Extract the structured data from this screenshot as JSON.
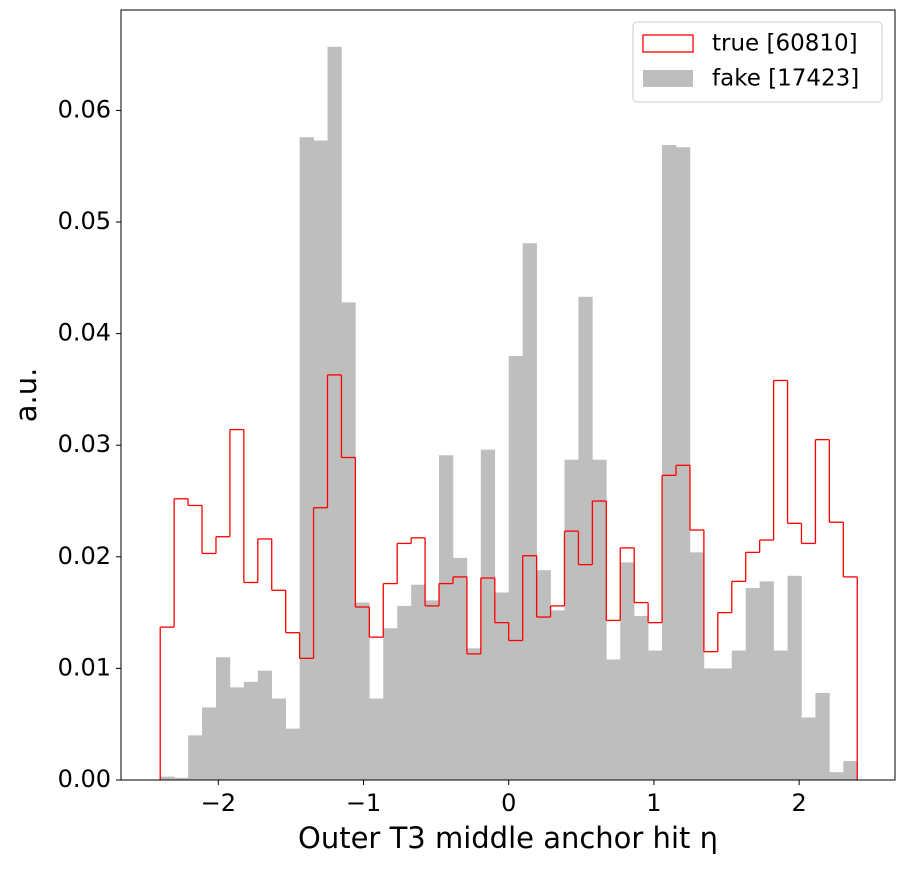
{
  "chart_data": {
    "type": "histogram",
    "xlabel": "Outer T3 middle anchor hit η",
    "ylabel": "a.u.",
    "bins": [
      -2.4,
      -2.304,
      -2.208,
      -2.112,
      -2.016,
      -1.92,
      -1.824,
      -1.728,
      -1.632,
      -1.536,
      -1.44,
      -1.344,
      -1.248,
      -1.152,
      -1.056,
      -0.96,
      -0.864,
      -0.768,
      -0.672,
      -0.576,
      -0.48,
      -0.384,
      -0.288,
      -0.192,
      -0.096,
      0,
      0.096,
      0.192,
      0.288,
      0.384,
      0.48,
      0.576,
      0.672,
      0.768,
      0.864,
      0.96,
      1.056,
      1.152,
      1.248,
      1.344,
      1.44,
      1.536,
      1.632,
      1.728,
      1.824,
      1.92,
      2.016,
      2.112,
      2.208,
      2.304,
      2.4
    ],
    "series": [
      {
        "name": "true [60810]",
        "color": "#ff0000",
        "histtype": "step",
        "values": [
          0.0137,
          0.0252,
          0.0246,
          0.0203,
          0.0218,
          0.0314,
          0.0177,
          0.0216,
          0.017,
          0.0132,
          0.0109,
          0.0244,
          0.0363,
          0.0289,
          0.0155,
          0.0128,
          0.0176,
          0.0212,
          0.0217,
          0.0156,
          0.0176,
          0.0182,
          0.0113,
          0.0181,
          0.0141,
          0.0125,
          0.0201,
          0.0146,
          0.0156,
          0.0223,
          0.0193,
          0.025,
          0.0143,
          0.0208,
          0.0159,
          0.0141,
          0.0273,
          0.0282,
          0.0224,
          0.0115,
          0.015,
          0.0178,
          0.0204,
          0.0215,
          0.0358,
          0.023,
          0.0212,
          0.0305,
          0.0231,
          0.0182
        ]
      },
      {
        "name": "fake [17423]",
        "color": "#bebebe",
        "histtype": "bar",
        "values": [
          0.0003,
          0.0002,
          0.004,
          0.0065,
          0.011,
          0.0083,
          0.0088,
          0.0098,
          0.0073,
          0.0046,
          0.0576,
          0.0573,
          0.0657,
          0.0428,
          0.0159,
          0.0073,
          0.0136,
          0.0156,
          0.0175,
          0.0161,
          0.0291,
          0.0199,
          0.0118,
          0.0296,
          0.0168,
          0.038,
          0.0481,
          0.0188,
          0.0152,
          0.0287,
          0.0433,
          0.0287,
          0.0108,
          0.0195,
          0.0147,
          0.0116,
          0.0569,
          0.0567,
          0.0204,
          0.01,
          0.01,
          0.0116,
          0.0172,
          0.0178,
          0.0116,
          0.0183,
          0.0056,
          0.0078,
          0.0007,
          0.0017
        ]
      }
    ],
    "xlim": [
      -2.67,
      2.66
    ],
    "ylim": [
      0,
      0.069
    ],
    "xticks": [
      {
        "value": -2,
        "label": "−2"
      },
      {
        "value": -1,
        "label": "−1"
      },
      0,
      1,
      2
    ],
    "yticks": [
      {
        "value": 0,
        "label": "0.00"
      },
      0.01,
      0.02,
      0.03,
      0.04,
      0.05,
      0.06
    ],
    "grid": false,
    "legend": "upper right"
  }
}
